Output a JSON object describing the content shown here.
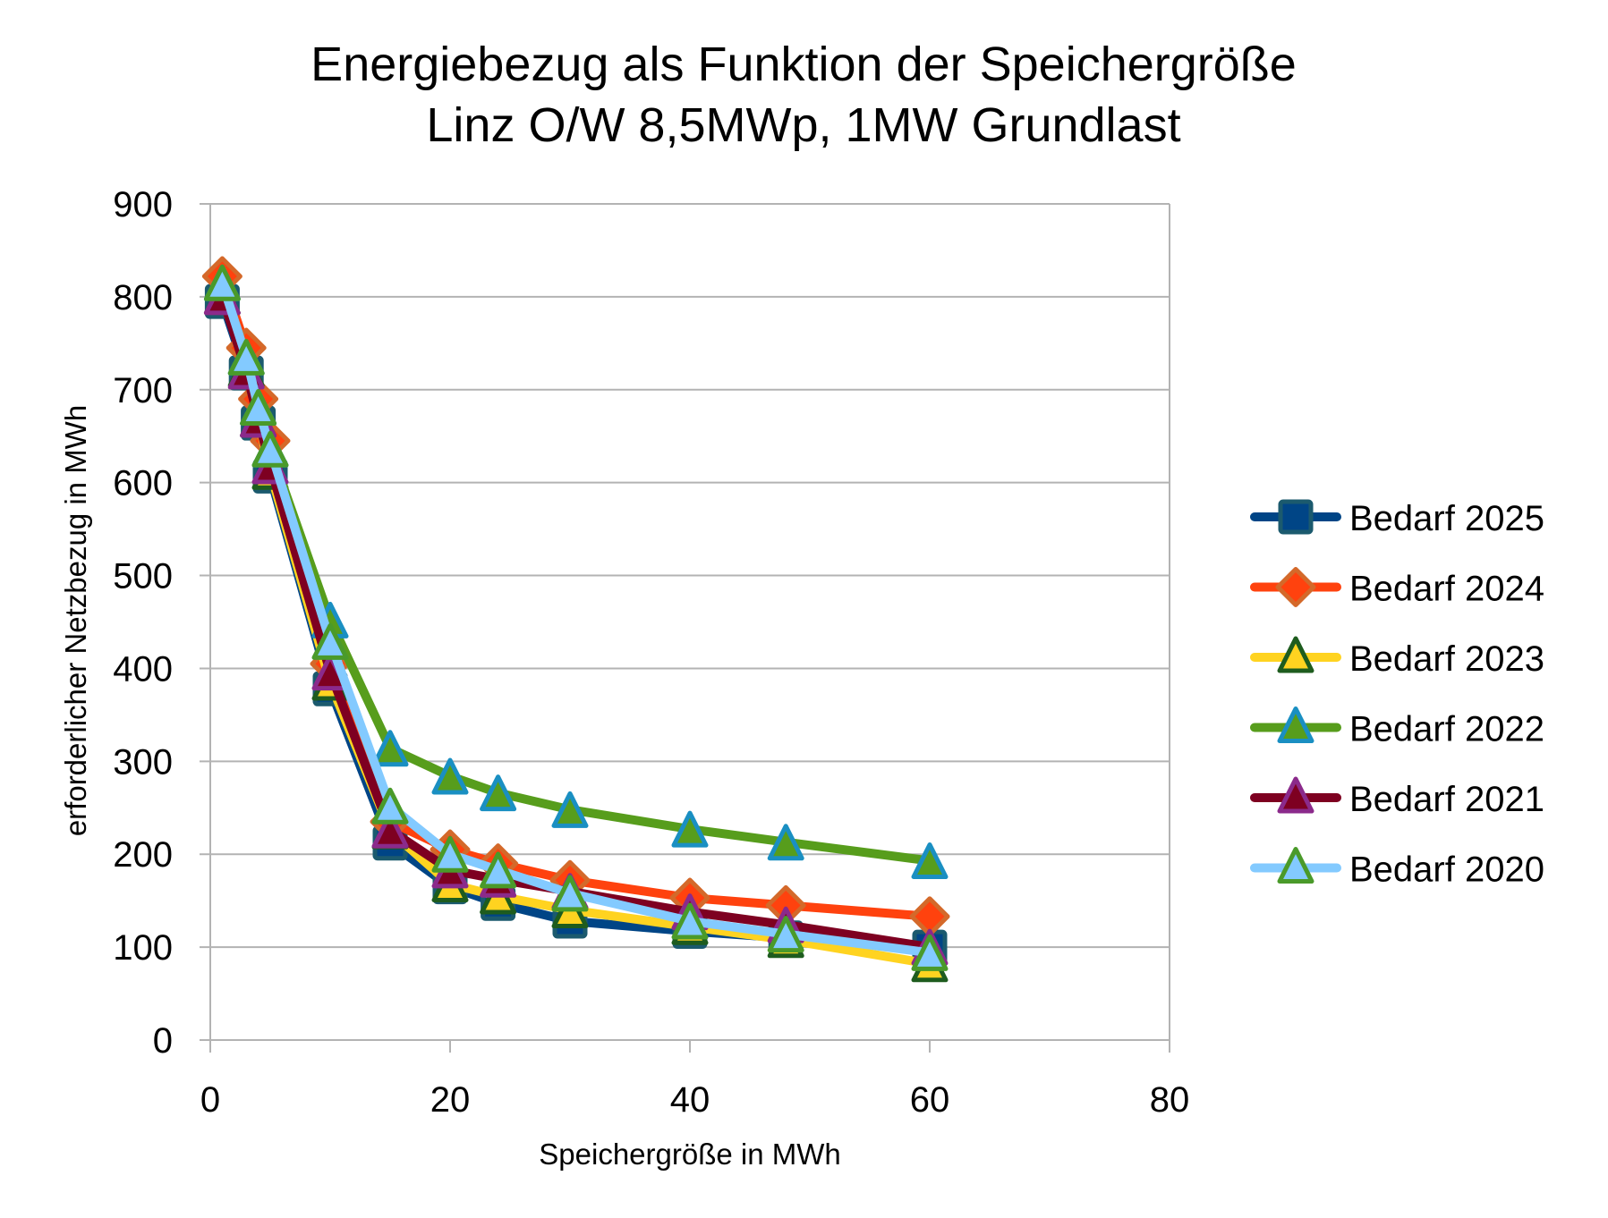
{
  "chart_data": {
    "type": "line",
    "title": [
      "Energiebezug als Funktion der Speichergröße",
      "Linz O/W 8,5MWp, 1MW Grundlast"
    ],
    "xlabel": "Speichergröße in MWh",
    "ylabel": "erforderlicher Netzbezug in MWh",
    "xlim": [
      0,
      80
    ],
    "ylim": [
      0,
      900
    ],
    "xticks": [
      0,
      20,
      40,
      60,
      80
    ],
    "yticks": [
      0,
      100,
      200,
      300,
      400,
      500,
      600,
      700,
      800,
      900
    ],
    "grid": "horizontal",
    "legend_position": "right",
    "x": [
      1,
      3,
      4,
      5,
      10,
      15,
      20,
      24,
      30,
      40,
      48,
      60
    ],
    "series": [
      {
        "name": "Bedarf 2025",
        "line_color": "#004586",
        "marker": "square",
        "marker_fill": "#004586",
        "marker_stroke": "#1b5a6e",
        "values": [
          795,
          718,
          664,
          607,
          378,
          212,
          165,
          147,
          128,
          117,
          110,
          100
        ]
      },
      {
        "name": "Bedarf 2024",
        "line_color": "#ff420e",
        "marker": "diamond",
        "marker_fill": "#ff420e",
        "marker_stroke": "#d4692a",
        "values": [
          822,
          745,
          690,
          645,
          405,
          235,
          205,
          190,
          172,
          153,
          145,
          133
        ]
      },
      {
        "name": "Bedarf 2023",
        "line_color": "#ffd320",
        "marker": "triangle",
        "marker_fill": "#ffd320",
        "marker_stroke": "#1e5c1e",
        "values": [
          800,
          722,
          668,
          612,
          385,
          225,
          168,
          155,
          140,
          122,
          108,
          82
        ]
      },
      {
        "name": "Bedarf 2022",
        "line_color": "#579d1c",
        "marker": "triangle",
        "marker_fill": "#579d1c",
        "marker_stroke": "#1a8fc2",
        "values": [
          815,
          735,
          681,
          636,
          452,
          314,
          284,
          266,
          248,
          227,
          213,
          193
        ]
      },
      {
        "name": "Bedarf 2021",
        "line_color": "#7e0021",
        "marker": "triangle",
        "marker_fill": "#7e0021",
        "marker_stroke": "#8b2a8b",
        "values": [
          800,
          720,
          668,
          618,
          396,
          226,
          183,
          173,
          160,
          138,
          124,
          100
        ]
      },
      {
        "name": "Bedarf 2020",
        "line_color": "#83caff",
        "marker": "triangle",
        "marker_fill": "#83caff",
        "marker_stroke": "#4a9a2a",
        "values": [
          815,
          735,
          681,
          636,
          429,
          252,
          200,
          183,
          158,
          128,
          114,
          94
        ]
      }
    ]
  }
}
